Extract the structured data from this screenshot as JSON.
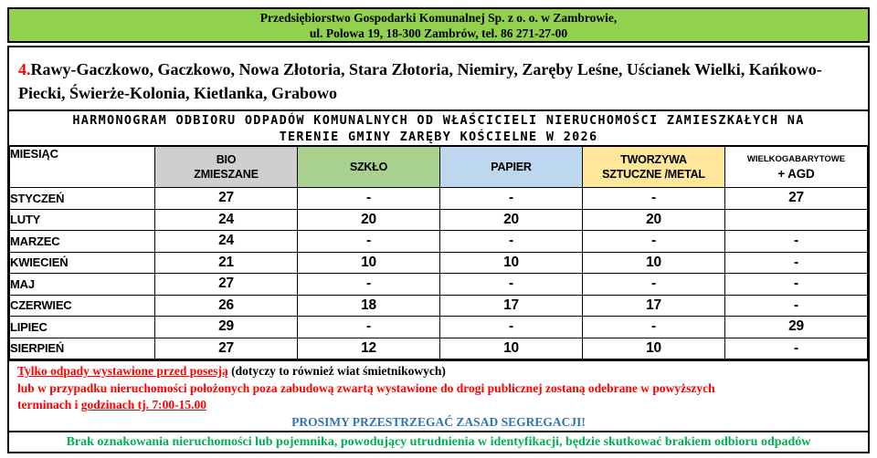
{
  "header_band": {
    "line1": "Przedsiębiorstwo Gospodarki Komunalnej Sp. z o. o. w Zambrowie,",
    "line2": "ul. Polowa 19, 18-300 Zambrów, tel. 86 271-27-00"
  },
  "route": {
    "number": "4.",
    "locations_line1": "Rawy-Gaczkowo, Gaczkowo, Nowa Złotoria, Stara Złotoria, Niemiry, Zaręby Leśne, Uścianek Wielki,",
    "locations_line2": "Kańkowo-Piecki, Świerże-Kolonia, Kietlanka, Grabowo"
  },
  "title": {
    "line1": "HARMONOGRAM ODBIORU ODPADÓW KOMUNALNYCH OD WŁAŚCICIELI NIERUCHOMOŚCI ZAMIESZKAŁYCH NA",
    "line2": "TERENIE GMINY ZARĘBY KOŚCIELNE W 2026"
  },
  "table": {
    "columns": [
      {
        "label": "MIESIĄC",
        "bg": "#ffffff"
      },
      {
        "line1": "BIO",
        "line2": "ZMIESZANE",
        "bg": "#d0cece"
      },
      {
        "line1": "SZKŁO",
        "line2": "",
        "bg": "#a9d18e"
      },
      {
        "line1": "PAPIER",
        "line2": "",
        "bg": "#bdd7ee"
      },
      {
        "line1": "TWORZYWA",
        "line2": "SZTUCZNE /METAL",
        "bg": "#ffe699"
      },
      {
        "line1": "WIELKOGABARYTOWE",
        "line2": "+ AGD",
        "bg": "#ffffff"
      }
    ],
    "rows": [
      {
        "month": "STYCZEŃ",
        "values": [
          "27",
          "-",
          "-",
          "-",
          "27"
        ]
      },
      {
        "month": "LUTY",
        "values": [
          "24",
          "20",
          "20",
          "20",
          ""
        ]
      },
      {
        "month": "MARZEC",
        "values": [
          "24",
          "-",
          "-",
          "-",
          "-"
        ]
      },
      {
        "month": "KWIECIEŃ",
        "values": [
          "21",
          "10",
          "10",
          "10",
          "-"
        ]
      },
      {
        "month": "MAJ",
        "values": [
          "27",
          "-",
          "-",
          "-",
          "-"
        ]
      },
      {
        "month": "CZERWIEC",
        "values": [
          "26",
          "18",
          "17",
          "17",
          "-"
        ]
      },
      {
        "month": "LIPIEC",
        "values": [
          "29",
          "-",
          "-",
          "-",
          "29"
        ]
      },
      {
        "month": "SIERPIEŃ",
        "values": [
          "27",
          "12",
          "10",
          "10",
          "-"
        ]
      }
    ]
  },
  "notes": {
    "line1_underlined": "Tylko odpady wystawione przed posesją",
    "line1_rest": " (dotyczy to również wiat śmietnikowych)",
    "line2": "lub w przypadku nieruchomości położonych poza zabudową zwartą wystawione do drogi publicznej zostaną odebrane w powyższych",
    "line3_prefix": "terminach i ",
    "line3_underlined": "godzinach tj. 7:00-15.00",
    "segregation": "PROSIMY PRZESTRZEGAĆ ZASAD SEGREGACJI!"
  },
  "footer": {
    "green_note": "Brak oznakowania nieruchomości lub pojemnika, powodujący utrudnienia w identyfikacji, będzie skutkować brakiem odbioru odpadów"
  },
  "colors": {
    "band_green": "#92d050",
    "bio_gray": "#d0cece",
    "szklo_green": "#a9d18e",
    "papier_blue": "#bdd7ee",
    "tworzywa_yellow": "#ffe699",
    "note_red": "#ff0000",
    "segregation_blue": "#2e74b5",
    "footer_green": "#00b050",
    "border_black": "#000000"
  }
}
